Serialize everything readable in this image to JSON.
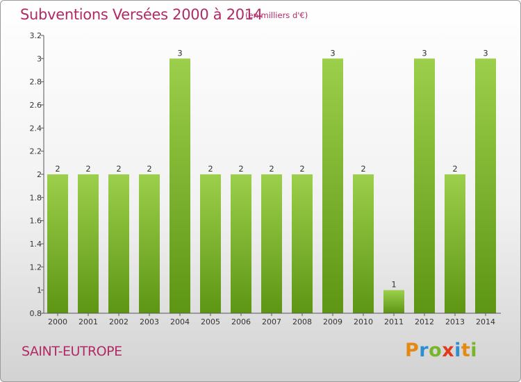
{
  "header": {
    "title": "Subventions Versées 2000 à 2014",
    "subtitle": "(en milliers d'€)"
  },
  "footer": {
    "commune": "SAINT-EUTROPE",
    "logo_letters": [
      "P",
      "r",
      "o",
      "x",
      "i",
      "t",
      "i"
    ],
    "logo_colors": [
      "#e48a12",
      "#2e8fd0",
      "#79b52c",
      "#e03a1a",
      "#2e8fd0",
      "#e48a12",
      "#79b52c"
    ]
  },
  "colors": {
    "bar_light": "#9ccf4b",
    "bar_dark": "#5d9614",
    "title": "#b02a66",
    "axis": "#555555"
  },
  "chart_data": {
    "type": "bar",
    "title": "Subventions Versées 2000 à 2014",
    "subtitle": "(en milliers d'€)",
    "categories": [
      "2000",
      "2001",
      "2002",
      "2003",
      "2004",
      "2005",
      "2006",
      "2007",
      "2008",
      "2009",
      "2010",
      "2011",
      "2012",
      "2013",
      "2014"
    ],
    "values": [
      2,
      2,
      2,
      2,
      3,
      2,
      2,
      2,
      2,
      3,
      2,
      1,
      3,
      2,
      3
    ],
    "data_labels": [
      "2",
      "2",
      "2",
      "2",
      "3",
      "2",
      "2",
      "2",
      "2",
      "3",
      "2",
      "1",
      "3",
      "2",
      "3"
    ],
    "ylim": [
      0.8,
      3.2
    ],
    "yticks": [
      0.8,
      1,
      1.2,
      1.4,
      1.6,
      1.8,
      2,
      2.2,
      2.4,
      2.6,
      2.8,
      3,
      3.2
    ],
    "ytick_labels": [
      "0.8",
      "1",
      "1.2",
      "1.4",
      "1.6",
      "1.8",
      "2",
      "2.2",
      "2.4",
      "2.6",
      "2.8",
      "3",
      "3.2"
    ],
    "xlabel": "",
    "ylabel": "",
    "grid": false,
    "legend": "none"
  }
}
